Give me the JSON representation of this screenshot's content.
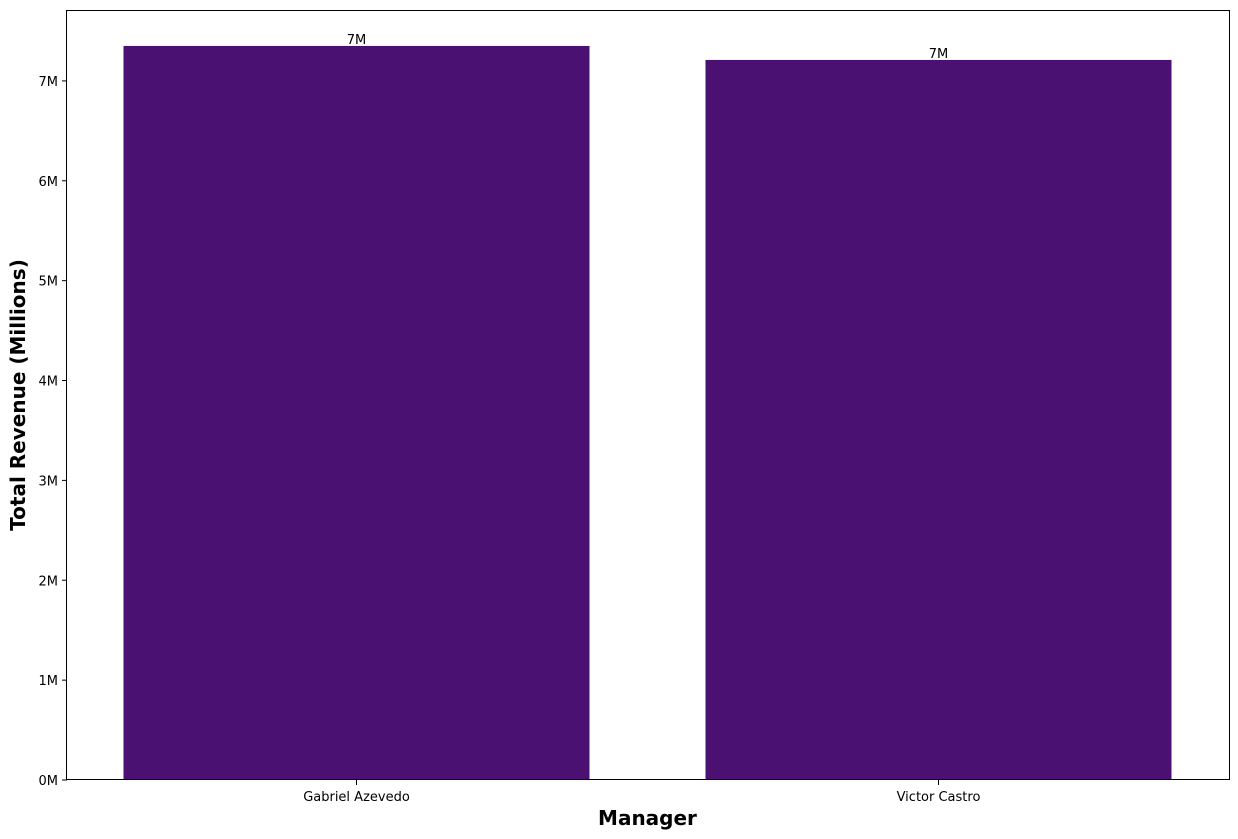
{
  "chart_data": {
    "type": "bar",
    "title": "",
    "xlabel": "Manager",
    "ylabel": "Total Revenue (Millions)",
    "categories": [
      "Gabriel Azevedo",
      "Victor Castro"
    ],
    "values": [
      7.35,
      7.21
    ],
    "value_labels": [
      "7M",
      "7M"
    ],
    "unit": "M",
    "ylim": [
      0,
      7.7
    ],
    "yticks": [
      0,
      1,
      2,
      3,
      4,
      5,
      6,
      7
    ],
    "ytick_labels": [
      "0M",
      "1M",
      "2M",
      "3M",
      "4M",
      "5M",
      "6M",
      "7M"
    ],
    "bar_color": "#4a1172",
    "grid": false,
    "legend": "none"
  }
}
